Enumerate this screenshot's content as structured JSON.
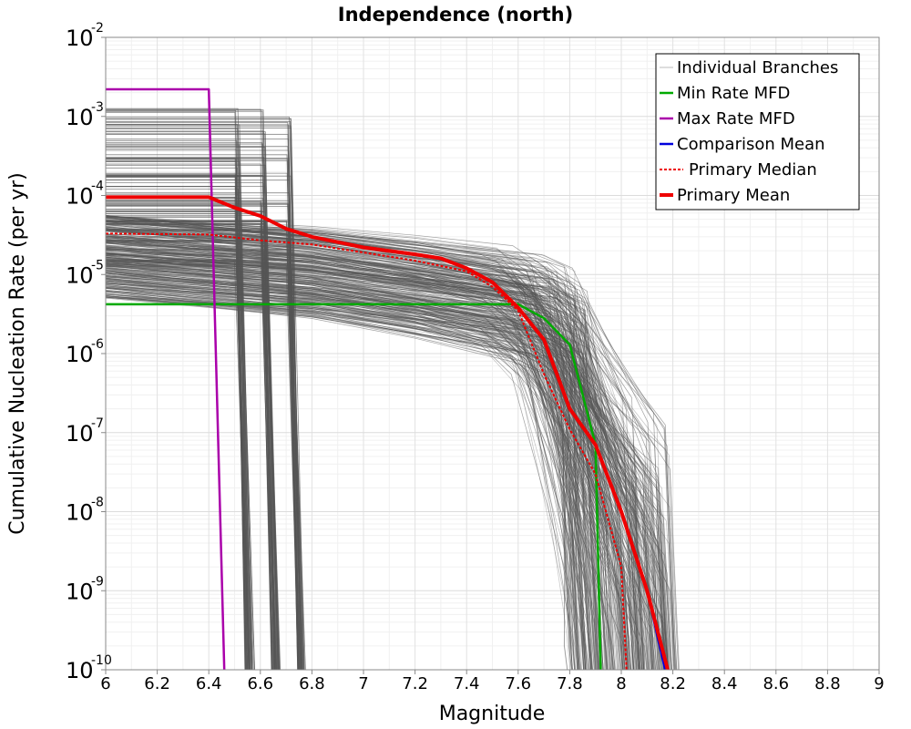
{
  "chart_data": {
    "type": "line",
    "title": "Independence (north)",
    "xlabel": "Magnitude",
    "ylabel": "Cumulative Nucleation Rate (per yr)",
    "xlim": [
      6,
      9
    ],
    "ylim": [
      1e-10,
      0.01
    ],
    "y_scale": "log",
    "grid": true,
    "legend_position": "top-right",
    "x_ticks": [
      "6",
      "6.2",
      "6.4",
      "6.6",
      "6.8",
      "7",
      "7.2",
      "7.4",
      "7.6",
      "7.8",
      "8",
      "8.2",
      "8.4",
      "8.6",
      "8.8",
      "9"
    ],
    "y_ticks": [
      {
        "value": 0.01,
        "base": "10",
        "exp": "-2"
      },
      {
        "value": 0.001,
        "base": "10",
        "exp": "-3"
      },
      {
        "value": 0.0001,
        "base": "10",
        "exp": "-4"
      },
      {
        "value": 1e-05,
        "base": "10",
        "exp": "-5"
      },
      {
        "value": 1e-06,
        "base": "10",
        "exp": "-6"
      },
      {
        "value": 1e-07,
        "base": "10",
        "exp": "-7"
      },
      {
        "value": 1e-08,
        "base": "10",
        "exp": "-8"
      },
      {
        "value": 1e-09,
        "base": "10",
        "exp": "-9"
      },
      {
        "value": 1e-10,
        "base": "10",
        "exp": "-10"
      }
    ],
    "branch_color": "#555555",
    "series": [
      {
        "name": "Individual Branches",
        "color": "#bbbbbb",
        "style": "thin",
        "x": [
          6.0,
          7.0,
          7.4,
          7.6,
          7.8,
          8.0,
          8.2
        ],
        "y": [
          0.0001,
          4e-05,
          2e-05,
          5e-06,
          3e-07,
          3e-09,
          1e-10
        ]
      },
      {
        "name": "Min Rate MFD",
        "color": "#00aa00",
        "style": "solid",
        "x": [
          6.0,
          7.6,
          7.7,
          7.8,
          7.9,
          7.92
        ],
        "y": [
          4.2e-06,
          4.2e-06,
          2.8e-06,
          1.3e-06,
          7e-08,
          1e-10
        ]
      },
      {
        "name": "Max Rate MFD",
        "color": "#aa00aa",
        "style": "solid",
        "x": [
          6.0,
          6.4,
          6.46
        ],
        "y": [
          0.0022,
          0.0022,
          1e-10
        ]
      },
      {
        "name": "Comparison Mean",
        "color": "#0000dd",
        "style": "solid",
        "x": [
          8.0,
          8.1,
          8.17
        ],
        "y": [
          1e-08,
          1e-09,
          1e-10
        ]
      },
      {
        "name": "Primary Median",
        "color": "#ee0000",
        "style": "dotted",
        "x": [
          6.0,
          6.4,
          6.6,
          6.8,
          7.0,
          7.2,
          7.4,
          7.5,
          7.6,
          7.7,
          7.8,
          7.9,
          8.0,
          8.02
        ],
        "y": [
          3.3e-05,
          3.2e-05,
          2.7e-05,
          2.4e-05,
          1.9e-05,
          1.5e-05,
          1.1e-05,
          7e-06,
          3.5e-06,
          5.5e-07,
          1.1e-07,
          3e-08,
          2e-09,
          1e-10
        ]
      },
      {
        "name": "Primary Mean",
        "color": "#ee0000",
        "style": "solid",
        "x": [
          6.0,
          6.4,
          6.5,
          6.6,
          6.7,
          6.8,
          7.0,
          7.2,
          7.3,
          7.4,
          7.5,
          7.6,
          7.7,
          7.8,
          7.9,
          8.0,
          8.1,
          8.18
        ],
        "y": [
          9.5e-05,
          9.5e-05,
          7e-05,
          5.5e-05,
          3.8e-05,
          3e-05,
          2.2e-05,
          1.8e-05,
          1.6e-05,
          1.2e-05,
          8e-06,
          3.8e-06,
          1.5e-06,
          2e-07,
          7e-08,
          1e-08,
          1e-09,
          1e-10
        ]
      }
    ]
  }
}
